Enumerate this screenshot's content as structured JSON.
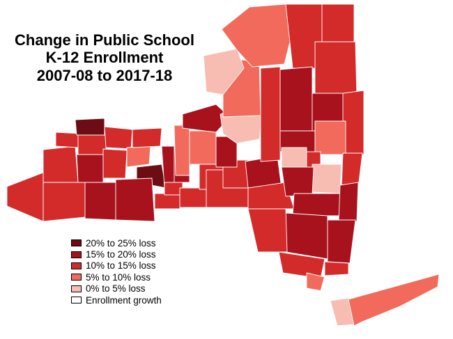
{
  "title": {
    "line1": "Change in Public School",
    "line2": "K-12 Enrollment",
    "line3": "2007-08 to 2017-18"
  },
  "legend": [
    {
      "label": "20% to 25% loss",
      "color": "#6b0d12"
    },
    {
      "label": "15% to 20% loss",
      "color": "#a8121c"
    },
    {
      "label": "10% to 15% loss",
      "color": "#d32a2a"
    },
    {
      "label": "5% to 10% loss",
      "color": "#f26a5b"
    },
    {
      "label": "0% to 5% loss",
      "color": "#f8bdb2"
    },
    {
      "label": "Enrollment growth",
      "color": "#ffffff"
    }
  ]
}
